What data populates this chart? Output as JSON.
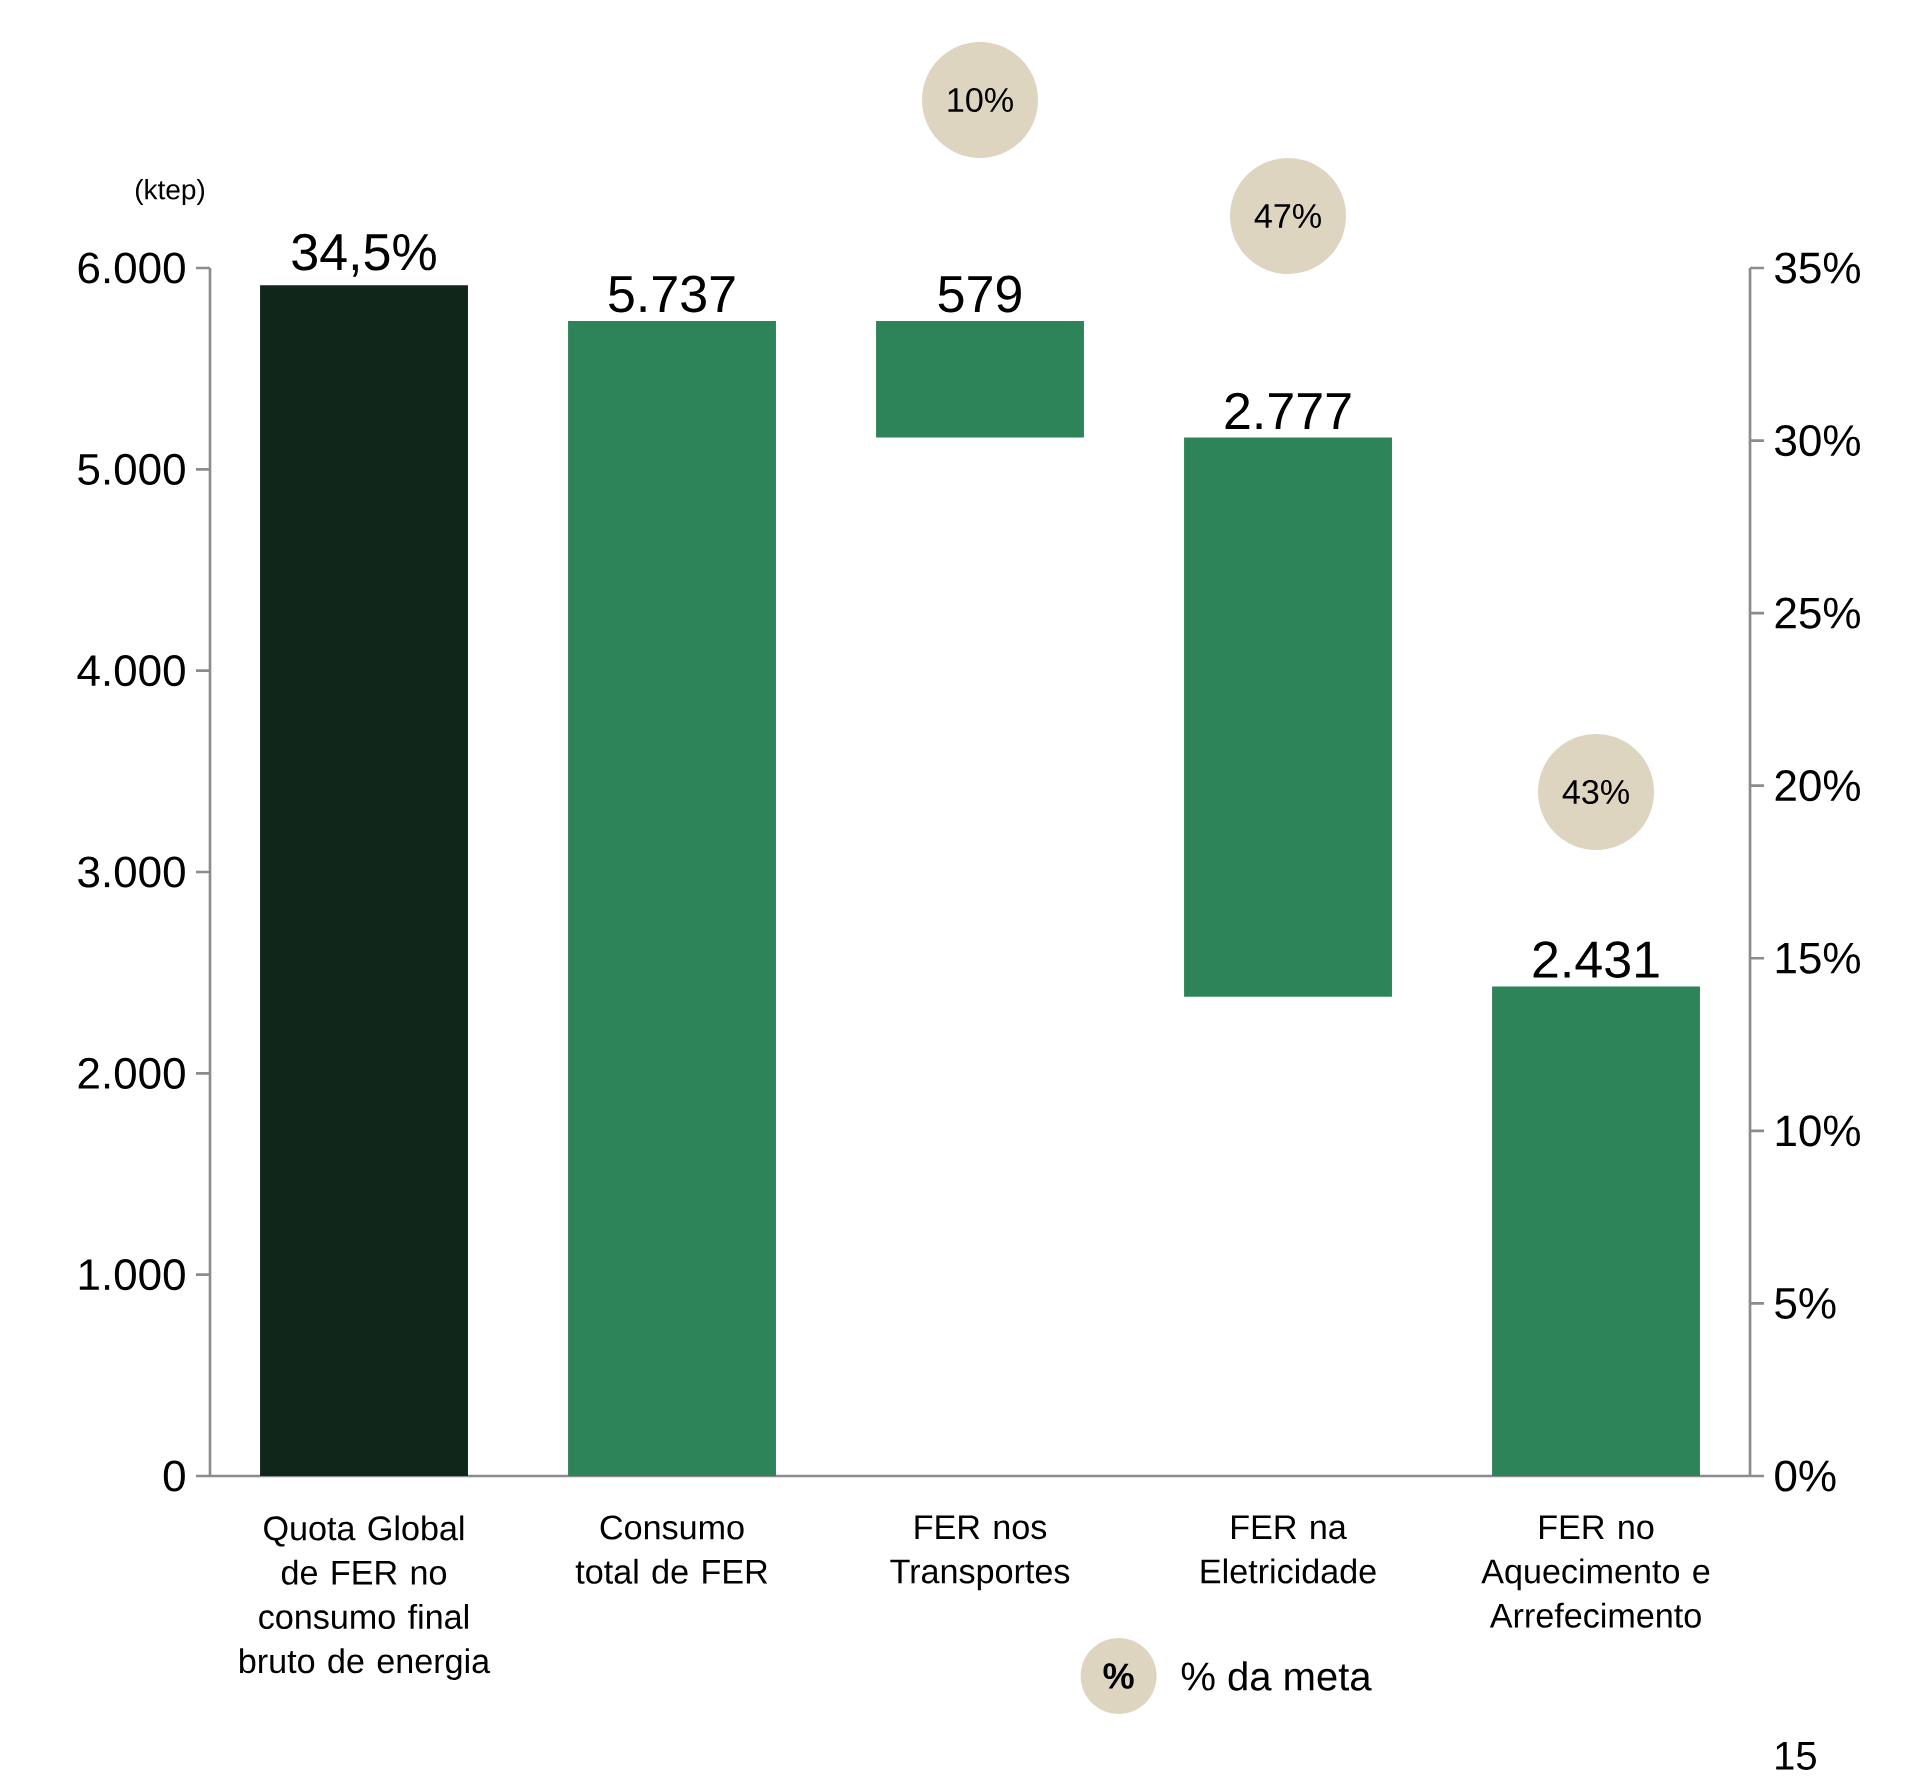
{
  "chart_data": {
    "type": "bar",
    "ylabel": "(ktep)",
    "categories": [
      "Quota Global de FER no consumo final bruto de energia",
      "Consumo total de FER",
      "FER nos Transportes",
      "FER na Eletricidade",
      "FER no Aquecimento e Arrefecimento"
    ],
    "series": [
      {
        "color": "#10261a",
        "axis": "y2",
        "values": [
          34.5,
          null,
          null,
          null,
          null
        ],
        "value_labels": [
          "34,5%",
          null,
          null,
          null,
          null
        ]
      },
      {
        "color": "#2e8459",
        "values": [
          null,
          5737,
          579,
          2777,
          2431
        ],
        "base": [
          null,
          0,
          5158,
          2381,
          0
        ],
        "value_labels": [
          null,
          "5.737",
          "579",
          "2.777",
          "2.431"
        ]
      }
    ],
    "ylim": [
      0,
      6000
    ],
    "yticks": [
      0,
      {
        "value": 1000,
        "label": "1.000"
      },
      {
        "value": 2000,
        "label": "2.000"
      },
      {
        "value": 3000,
        "label": "3.000"
      },
      {
        "value": 4000,
        "label": "4.000"
      },
      {
        "value": 5000,
        "label": "5.000"
      },
      {
        "value": 6000,
        "label": "6.000"
      }
    ],
    "y2lim": [
      0,
      35
    ],
    "y2ticks": [
      {
        "value": 0,
        "label": "0%"
      },
      {
        "value": 5,
        "label": "5%"
      },
      {
        "value": 10,
        "label": "10%"
      },
      {
        "value": 15,
        "label": "15%"
      },
      {
        "value": 20,
        "label": "20%"
      },
      {
        "value": 25,
        "label": "25%"
      },
      {
        "value": 30,
        "label": "30%"
      },
      {
        "value": 35,
        "label": "35%"
      }
    ],
    "annotations": [
      "10%",
      "47%",
      "43%",
      "%",
      "% da meta",
      "15"
    ]
  }
}
